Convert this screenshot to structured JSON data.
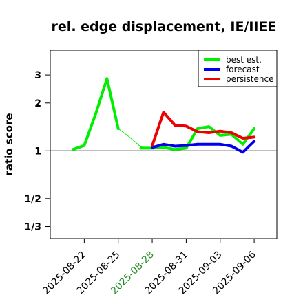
{
  "chart_data": {
    "type": "line",
    "title": "rel. edge displacement, IE/IIEE",
    "ylabel": "ratio score",
    "xlabel": "",
    "y_scale": "reciprocal-symmetric log (1/3, 1/2, 1, 2, 3)",
    "y_ticks": [
      {
        "label": "3",
        "value": 3
      },
      {
        "label": "2",
        "value": 2
      },
      {
        "label": "1",
        "value": 1
      },
      {
        "label": "1/2",
        "value": 0.5
      },
      {
        "label": "1/3",
        "value": 0.3333
      }
    ],
    "ylim": [
      0.28,
      4.3
    ],
    "x_ticks": [
      {
        "label": "2025-08-22",
        "date": "2025-08-22",
        "color": "#000000"
      },
      {
        "label": "2025-08-25",
        "date": "2025-08-25",
        "color": "#000000"
      },
      {
        "label": "2025-08-28",
        "date": "2025-08-28",
        "color": "#1f8a1f"
      },
      {
        "label": "2025-08-31",
        "date": "2025-08-31",
        "color": "#000000"
      },
      {
        "label": "2025-09-03",
        "date": "2025-09-03",
        "color": "#000000"
      },
      {
        "label": "2025-09-06",
        "date": "2025-09-06",
        "color": "#000000"
      }
    ],
    "xlim": [
      "2025-08-19",
      "2025-09-08"
    ],
    "reference_line": 1,
    "series": [
      {
        "name": "best est.",
        "color": "#00ee00",
        "x": [
          "2025-08-21",
          "2025-08-22",
          "2025-08-23",
          "2025-08-24",
          "2025-08-25"
        ],
        "y": [
          1.02,
          1.08,
          1.7,
          2.85,
          1.38
        ]
      },
      {
        "name": "",
        "color": "#00ee00",
        "thin": true,
        "x": [
          "2025-08-25",
          "2025-08-26",
          "2025-08-27",
          "2025-08-28"
        ],
        "y": [
          1.38,
          1.22,
          1.06,
          1.04
        ]
      },
      {
        "name": "",
        "color": "#00ee00",
        "x": [
          "2025-08-27",
          "2025-08-28",
          "2025-08-29",
          "2025-08-30",
          "2025-08-31",
          "2025-09-01",
          "2025-09-02",
          "2025-09-03",
          "2025-09-04",
          "2025-09-05",
          "2025-09-06"
        ],
        "y": [
          1.04,
          1.04,
          1.05,
          1.02,
          1.04,
          1.38,
          1.42,
          1.25,
          1.27,
          1.1,
          1.38
        ]
      },
      {
        "name": "forecast",
        "color": "#0000ee",
        "x": [
          "2025-08-28",
          "2025-08-29",
          "2025-08-30",
          "2025-08-31",
          "2025-09-01",
          "2025-09-02",
          "2025-09-03",
          "2025-09-04",
          "2025-09-05",
          "2025-09-06"
        ],
        "y": [
          1.05,
          1.1,
          1.07,
          1.08,
          1.1,
          1.1,
          1.1,
          1.07,
          0.98,
          1.15
        ]
      },
      {
        "name": "persistence",
        "color": "#ee0000",
        "x": [
          "2025-08-28",
          "2025-08-29",
          "2025-08-30",
          "2025-08-31",
          "2025-09-01",
          "2025-09-02",
          "2025-09-03",
          "2025-09-04",
          "2025-09-05",
          "2025-09-06"
        ],
        "y": [
          1.08,
          1.75,
          1.45,
          1.43,
          1.32,
          1.3,
          1.33,
          1.3,
          1.2,
          1.22
        ]
      }
    ],
    "legend": {
      "placement": "top-right",
      "entries": [
        {
          "label": "best est.",
          "color": "#00ee00"
        },
        {
          "label": "forecast",
          "color": "#0000ee"
        },
        {
          "label": "persistence",
          "color": "#ee0000"
        }
      ]
    },
    "grid": false
  }
}
